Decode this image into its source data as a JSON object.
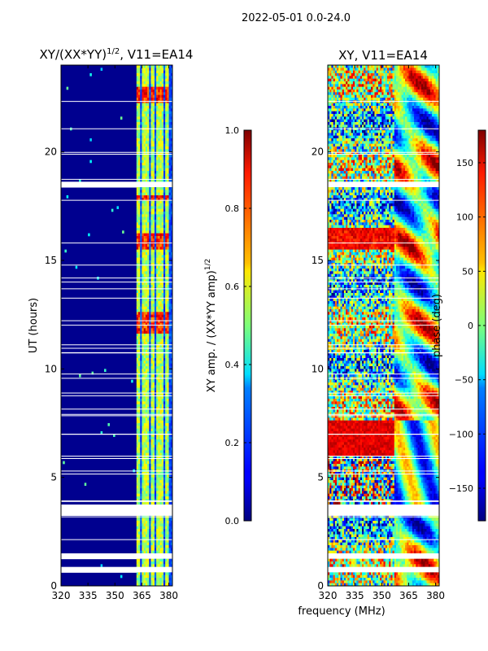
{
  "figure_title": "2022-05-01 0.0-24.0",
  "shared_xlabel": "frequency (MHz)",
  "chart_data": [
    {
      "type": "heatmap",
      "title_main": "XY/(XX*YY)",
      "title_sup": "1/2",
      "title_rest": ", V11=EA14",
      "ylabel": "UT (hours)",
      "xlim": [
        320,
        382
      ],
      "ylim": [
        0,
        24
      ],
      "xticks": [
        "320",
        "335",
        "350",
        "365",
        "380"
      ],
      "xtick_values": [
        320,
        335,
        350,
        365,
        380
      ],
      "yticks": [
        "0",
        "5",
        "10",
        "15",
        "20"
      ],
      "ytick_values": [
        0,
        5,
        10,
        15,
        20
      ],
      "colorbar": {
        "label_main": "XY amp. / (XX*YY amp)",
        "label_sup": "1/2",
        "range": [
          0.0,
          1.0
        ],
        "ticks": [
          "0.0",
          "0.2",
          "0.4",
          "0.6",
          "0.8",
          "1.0"
        ],
        "tick_values": [
          0.0,
          0.2,
          0.4,
          0.6,
          0.8,
          1.0
        ]
      },
      "bright_channels_mhz": [
        363,
        366,
        368,
        371,
        374,
        376,
        379
      ],
      "high_amplitude_hours": [
        [
          22.2,
          23.0
        ],
        [
          17.7,
          18.0
        ],
        [
          15.5,
          16.3
        ],
        [
          11.6,
          12.6
        ]
      ],
      "blank_hours": [
        [
          18.4,
          18.6
        ],
        [
          3.3,
          3.7
        ],
        [
          1.3,
          1.5
        ],
        [
          0.6,
          0.9
        ]
      ]
    },
    {
      "type": "heatmap",
      "title_main": "XY, V11=EA14",
      "ylabel": "",
      "xlim": [
        320,
        382
      ],
      "ylim": [
        0,
        24
      ],
      "xticks": [
        "320",
        "335",
        "350",
        "365",
        "380"
      ],
      "xtick_values": [
        320,
        335,
        350,
        365,
        380
      ],
      "yticks": [
        "0",
        "5",
        "10",
        "15",
        "20"
      ],
      "ytick_values": [
        0,
        5,
        10,
        15,
        20
      ],
      "colorbar": {
        "label_main": "phase (deg)",
        "range": [
          -180,
          180
        ],
        "ticks": [
          "−150",
          "−100",
          "−50",
          "0",
          "50",
          "100",
          "150"
        ],
        "tick_values": [
          -150,
          -100,
          -50,
          0,
          50,
          100,
          150
        ]
      },
      "blank_hours": [
        [
          18.4,
          18.6
        ],
        [
          3.3,
          3.7
        ],
        [
          1.3,
          1.5
        ],
        [
          0.6,
          0.9
        ]
      ]
    }
  ]
}
